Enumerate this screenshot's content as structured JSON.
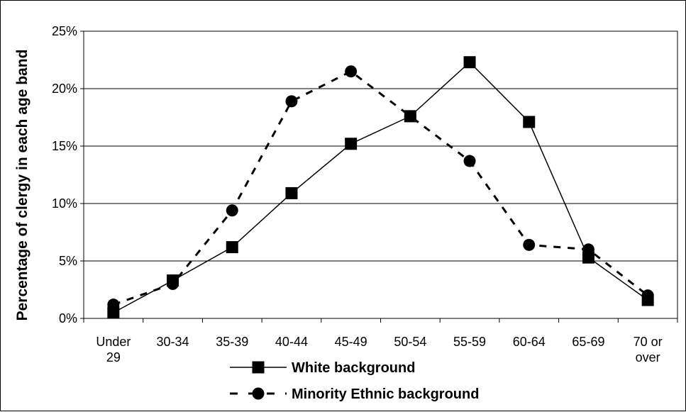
{
  "chart_data": {
    "type": "line",
    "title": "",
    "xlabel": "",
    "ylabel": "Percentage of clergy in each age band",
    "categories": [
      [
        "Under",
        "29"
      ],
      [
        "30-34"
      ],
      [
        "35-39"
      ],
      [
        "40-44"
      ],
      [
        "45-49"
      ],
      [
        "50-54"
      ],
      [
        "55-59"
      ],
      [
        "60-64"
      ],
      [
        "65-69"
      ],
      [
        "70 or",
        "over"
      ]
    ],
    "ylim": [
      0,
      25
    ],
    "yticks": [
      0,
      5,
      10,
      15,
      20,
      25
    ],
    "ytick_labels": [
      "0%",
      "5%",
      "10%",
      "15%",
      "20%",
      "25%"
    ],
    "grid": true,
    "legend_position": "bottom",
    "series": [
      {
        "name": "White background",
        "marker": "square",
        "line_style": "solid",
        "values": [
          0.5,
          3.3,
          6.2,
          10.9,
          15.2,
          17.6,
          22.3,
          17.1,
          5.3,
          1.6
        ]
      },
      {
        "name": "Minority Ethnic background",
        "marker": "circle",
        "line_style": "dashed",
        "values": [
          1.2,
          3.0,
          9.4,
          18.9,
          21.5,
          17.6,
          13.7,
          6.4,
          6.0,
          2.0
        ]
      }
    ]
  }
}
